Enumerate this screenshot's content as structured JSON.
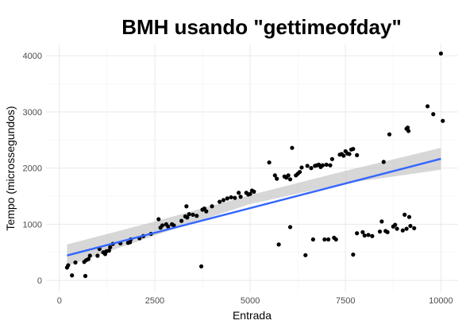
{
  "chart_data": {
    "type": "scatter",
    "title": "BMH usando \"gettimeofday\"",
    "xlabel": "Entrada",
    "ylabel": "Tempo (microssegundos)",
    "xlim": [
      -350,
      10450
    ],
    "ylim": [
      -210,
      4200
    ],
    "x_ticks": [
      0,
      2500,
      5000,
      7500,
      10000
    ],
    "x_tick_labels": [
      "0",
      "2500",
      "5000",
      "7500",
      "10000"
    ],
    "y_ticks": [
      0,
      1000,
      2000,
      3000,
      4000
    ],
    "y_tick_labels": [
      "0",
      "1000",
      "2000",
      "3000",
      "4000"
    ],
    "grid": true,
    "points": [
      {
        "x": 200,
        "y": 230
      },
      {
        "x": 230,
        "y": 270
      },
      {
        "x": 330,
        "y": 90
      },
      {
        "x": 420,
        "y": 320
      },
      {
        "x": 650,
        "y": 330
      },
      {
        "x": 680,
        "y": 80
      },
      {
        "x": 700,
        "y": 360
      },
      {
        "x": 760,
        "y": 380
      },
      {
        "x": 800,
        "y": 440
      },
      {
        "x": 1000,
        "y": 440
      },
      {
        "x": 1050,
        "y": 560
      },
      {
        "x": 1150,
        "y": 500
      },
      {
        "x": 1200,
        "y": 470
      },
      {
        "x": 1230,
        "y": 520
      },
      {
        "x": 1300,
        "y": 530
      },
      {
        "x": 1330,
        "y": 590
      },
      {
        "x": 1400,
        "y": 650
      },
      {
        "x": 1600,
        "y": 660
      },
      {
        "x": 1800,
        "y": 670
      },
      {
        "x": 1850,
        "y": 680
      },
      {
        "x": 1870,
        "y": 730
      },
      {
        "x": 2100,
        "y": 750
      },
      {
        "x": 2200,
        "y": 790
      },
      {
        "x": 2400,
        "y": 830
      },
      {
        "x": 2600,
        "y": 1090
      },
      {
        "x": 2650,
        "y": 940
      },
      {
        "x": 2700,
        "y": 980
      },
      {
        "x": 2800,
        "y": 1000
      },
      {
        "x": 2850,
        "y": 960
      },
      {
        "x": 2950,
        "y": 1000
      },
      {
        "x": 3000,
        "y": 980
      },
      {
        "x": 3200,
        "y": 1060
      },
      {
        "x": 3300,
        "y": 1140
      },
      {
        "x": 3330,
        "y": 1320
      },
      {
        "x": 3350,
        "y": 1120
      },
      {
        "x": 3400,
        "y": 1180
      },
      {
        "x": 3500,
        "y": 1170
      },
      {
        "x": 3600,
        "y": 1150
      },
      {
        "x": 3720,
        "y": 250
      },
      {
        "x": 3750,
        "y": 1260
      },
      {
        "x": 3800,
        "y": 1280
      },
      {
        "x": 3850,
        "y": 1230
      },
      {
        "x": 4000,
        "y": 1320
      },
      {
        "x": 4200,
        "y": 1400
      },
      {
        "x": 4300,
        "y": 1430
      },
      {
        "x": 4400,
        "y": 1460
      },
      {
        "x": 4500,
        "y": 1480
      },
      {
        "x": 4600,
        "y": 1470
      },
      {
        "x": 4700,
        "y": 1560
      },
      {
        "x": 4750,
        "y": 1490
      },
      {
        "x": 4900,
        "y": 1560
      },
      {
        "x": 4950,
        "y": 1530
      },
      {
        "x": 5000,
        "y": 1540
      },
      {
        "x": 5050,
        "y": 1600
      },
      {
        "x": 5100,
        "y": 1580
      },
      {
        "x": 5500,
        "y": 2100
      },
      {
        "x": 5650,
        "y": 1870
      },
      {
        "x": 5700,
        "y": 1810
      },
      {
        "x": 5750,
        "y": 640
      },
      {
        "x": 5900,
        "y": 1850
      },
      {
        "x": 5950,
        "y": 1830
      },
      {
        "x": 6000,
        "y": 1870
      },
      {
        "x": 6050,
        "y": 1800
      },
      {
        "x": 6050,
        "y": 950
      },
      {
        "x": 6100,
        "y": 2360
      },
      {
        "x": 6200,
        "y": 1870
      },
      {
        "x": 6250,
        "y": 1900
      },
      {
        "x": 6300,
        "y": 1930
      },
      {
        "x": 6350,
        "y": 2010
      },
      {
        "x": 6450,
        "y": 450
      },
      {
        "x": 6500,
        "y": 2040
      },
      {
        "x": 6600,
        "y": 2000
      },
      {
        "x": 6650,
        "y": 730
      },
      {
        "x": 6700,
        "y": 2040
      },
      {
        "x": 6750,
        "y": 2050
      },
      {
        "x": 6800,
        "y": 2060
      },
      {
        "x": 6850,
        "y": 2020
      },
      {
        "x": 6900,
        "y": 2050
      },
      {
        "x": 6950,
        "y": 730
      },
      {
        "x": 7000,
        "y": 2060
      },
      {
        "x": 7050,
        "y": 730
      },
      {
        "x": 7100,
        "y": 2050
      },
      {
        "x": 7150,
        "y": 2160
      },
      {
        "x": 7200,
        "y": 760
      },
      {
        "x": 7250,
        "y": 730
      },
      {
        "x": 7350,
        "y": 2240
      },
      {
        "x": 7400,
        "y": 2250
      },
      {
        "x": 7450,
        "y": 2220
      },
      {
        "x": 7500,
        "y": 2300
      },
      {
        "x": 7550,
        "y": 2260
      },
      {
        "x": 7600,
        "y": 2250
      },
      {
        "x": 7650,
        "y": 2330
      },
      {
        "x": 7700,
        "y": 2340
      },
      {
        "x": 7700,
        "y": 460
      },
      {
        "x": 7800,
        "y": 2230
      },
      {
        "x": 7800,
        "y": 840
      },
      {
        "x": 7950,
        "y": 860
      },
      {
        "x": 8000,
        "y": 800
      },
      {
        "x": 8100,
        "y": 810
      },
      {
        "x": 8200,
        "y": 790
      },
      {
        "x": 8400,
        "y": 870
      },
      {
        "x": 8450,
        "y": 1050
      },
      {
        "x": 8500,
        "y": 2110
      },
      {
        "x": 8550,
        "y": 880
      },
      {
        "x": 8600,
        "y": 860
      },
      {
        "x": 8650,
        "y": 2600
      },
      {
        "x": 8750,
        "y": 960
      },
      {
        "x": 8800,
        "y": 990
      },
      {
        "x": 8850,
        "y": 920
      },
      {
        "x": 9000,
        "y": 890
      },
      {
        "x": 9050,
        "y": 1170
      },
      {
        "x": 9100,
        "y": 2700
      },
      {
        "x": 9130,
        "y": 2720
      },
      {
        "x": 9150,
        "y": 2660
      },
      {
        "x": 9170,
        "y": 1130
      },
      {
        "x": 9200,
        "y": 970
      },
      {
        "x": 9300,
        "y": 930
      },
      {
        "x": 9650,
        "y": 3100
      },
      {
        "x": 9800,
        "y": 2960
      },
      {
        "x": 10000,
        "y": 4040
      },
      {
        "x": 10050,
        "y": 2840
      },
      {
        "x": 9100,
        "y": 920
      }
    ],
    "fit": {
      "type": "linear",
      "x_range": [
        200,
        10000
      ],
      "line": [
        [
          200,
          445
        ],
        [
          10000,
          2165
        ]
      ],
      "ci_upper": [
        [
          200,
          640
        ],
        [
          2500,
          1050
        ],
        [
          5000,
          1520
        ],
        [
          7500,
          1950
        ],
        [
          10000,
          2360
        ]
      ],
      "ci_lower": [
        [
          200,
          260
        ],
        [
          2500,
          800
        ],
        [
          5000,
          1360
        ],
        [
          7500,
          1730
        ],
        [
          10000,
          1970
        ]
      ]
    },
    "colors": {
      "point": "#000000",
      "fit_line": "#3366ff",
      "ci_band": "#bdbdbd",
      "grid": "#ebebeb",
      "tick_label": "#4d4d4d"
    }
  }
}
